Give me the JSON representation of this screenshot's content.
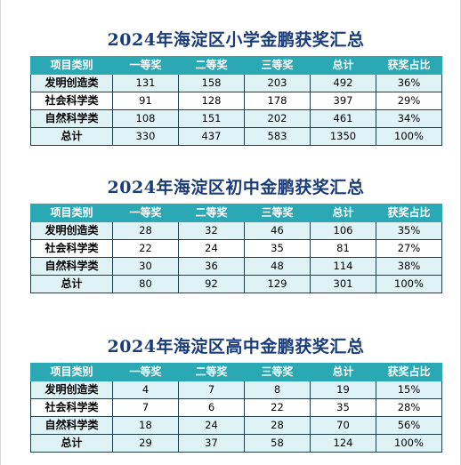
{
  "header": [
    "项目类别",
    "一等奖",
    "二等奖",
    "三等奖",
    "总计",
    "获奖占比"
  ],
  "tables": [
    {
      "title": "2024年海淀区小学金鹏获奖汇总",
      "rows": [
        [
          "发明创造类",
          "131",
          "158",
          "203",
          "492",
          "36%"
        ],
        [
          "社会科学类",
          "91",
          "128",
          "178",
          "397",
          "29%"
        ],
        [
          "自然科学类",
          "108",
          "151",
          "202",
          "461",
          "34%"
        ],
        [
          "总计",
          "330",
          "437",
          "583",
          "1350",
          "100%"
        ]
      ]
    },
    {
      "title": "2024年海淀区初中金鹏获奖汇总",
      "rows": [
        [
          "发明创造类",
          "28",
          "32",
          "46",
          "106",
          "35%"
        ],
        [
          "社会科学类",
          "22",
          "24",
          "35",
          "81",
          "27%"
        ],
        [
          "自然科学类",
          "30",
          "36",
          "48",
          "114",
          "38%"
        ],
        [
          "总计",
          "80",
          "92",
          "129",
          "301",
          "100%"
        ]
      ]
    },
    {
      "title": "2024年海淀区高中金鹏获奖汇总",
      "rows": [
        [
          "发明创造类",
          "4",
          "7",
          "8",
          "19",
          "15%"
        ],
        [
          "社会科学类",
          "7",
          "6",
          "22",
          "35",
          "28%"
        ],
        [
          "自然科学类",
          "18",
          "24",
          "28",
          "70",
          "56%"
        ],
        [
          "总计",
          "29",
          "37",
          "58",
          "124",
          "100%"
        ]
      ]
    }
  ]
}
